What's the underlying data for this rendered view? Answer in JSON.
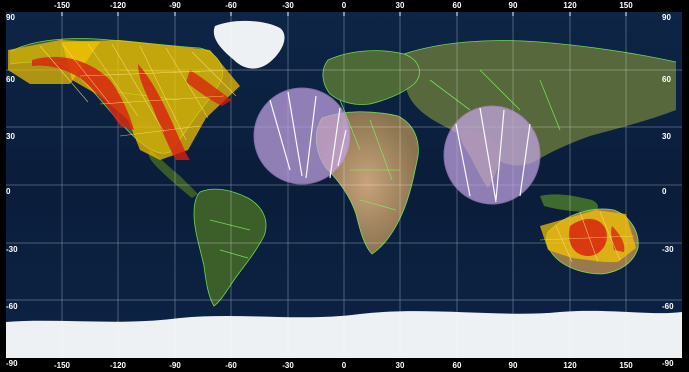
{
  "map": {
    "projection": "equirectangular",
    "longitude_ticks": [
      "-150",
      "-120",
      "-90",
      "-60",
      "-30",
      "0",
      "30",
      "60",
      "90",
      "120",
      "150"
    ],
    "latitude_ticks": [
      "90",
      "60",
      "30",
      "0",
      "-30",
      "-60",
      "-90"
    ],
    "colors": {
      "ocean": "#0b1d3a",
      "land": "#3d5a2a",
      "ice": "#f2f4f6",
      "borders": "#7cf05a",
      "grid": "#ffffff",
      "swath_fill": "#f5c400",
      "swath_core": "#d81e10",
      "coverage_circle": "#c8a8e8",
      "coverage_track": "#ffffff"
    },
    "overlays": [
      {
        "name": "swath-north-america",
        "kind": "satellite-swath"
      },
      {
        "name": "swath-australia",
        "kind": "satellite-swath"
      },
      {
        "name": "coverage-circle-atlantic",
        "kind": "coverage-circle"
      },
      {
        "name": "coverage-circle-india",
        "kind": "coverage-circle"
      }
    ]
  }
}
